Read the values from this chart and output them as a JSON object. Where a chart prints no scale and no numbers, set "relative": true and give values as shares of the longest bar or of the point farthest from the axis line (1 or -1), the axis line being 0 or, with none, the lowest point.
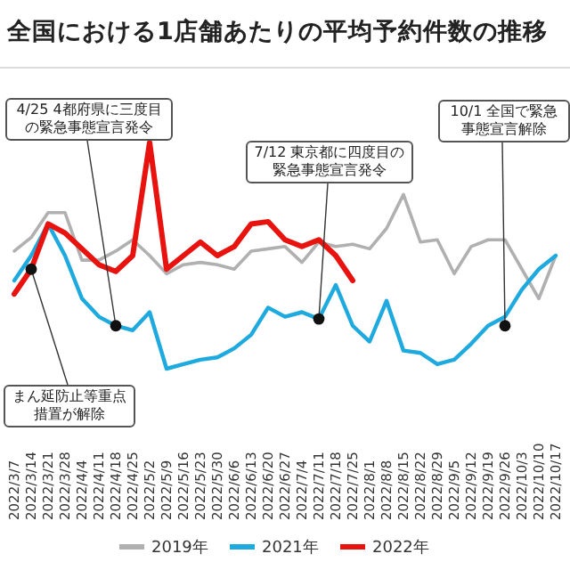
{
  "chart_data": {
    "type": "line",
    "title": "全国における1店舗あたりの平均予約件数の推移",
    "relative": true,
    "legend": "bottom",
    "categories": [
      "2022/3/7",
      "2022/3/14",
      "2022/3/21",
      "2022/3/28",
      "2022/4/4",
      "2022/4/11",
      "2022/4/18",
      "2022/4/25",
      "2022/5/2",
      "2022/5/9",
      "2022/5/16",
      "2022/5/23",
      "2022/5/30",
      "2022/6/6",
      "2022/6/13",
      "2022/6/20",
      "2022/6/27",
      "2022/7/4",
      "2022/7/11",
      "2022/7/18",
      "2022/7/25",
      "2022/8/1",
      "2022/8/8",
      "2022/8/15",
      "2022/8/22",
      "2022/8/29",
      "2022/9/5",
      "2022/9/12",
      "2022/9/19",
      "2022/9/26",
      "2022/10/3",
      "2022/10/10",
      "2022/10/17"
    ],
    "series": [
      {
        "name": "2019年",
        "color": "#b0b0b0",
        "values": [
          0.52,
          0.58,
          0.69,
          0.69,
          0.48,
          0.48,
          0.52,
          0.57,
          0.5,
          0.42,
          0.46,
          0.47,
          0.46,
          0.44,
          0.52,
          0.53,
          0.54,
          0.47,
          0.56,
          0.54,
          0.55,
          0.53,
          0.62,
          0.77,
          0.56,
          0.57,
          0.42,
          0.54,
          0.57,
          0.57,
          0.44,
          0.31,
          0.5
        ]
      },
      {
        "name": "2021年",
        "color": "#1eaadf",
        "values": [
          0.39,
          0.5,
          0.64,
          0.5,
          0.31,
          0.23,
          0.19,
          0.17,
          0.25,
          0,
          0.02,
          0.04,
          0.05,
          0.09,
          0.15,
          0.27,
          0.23,
          0.25,
          0.22,
          0.37,
          0.19,
          0.12,
          0.3,
          0.08,
          0.07,
          0.02,
          0.04,
          0.11,
          0.19,
          0.23,
          0.35,
          0.44,
          0.5
        ]
      },
      {
        "name": "2022年",
        "color": "#e8130f",
        "values": [
          0.33,
          0.44,
          0.64,
          0.6,
          0.53,
          0.46,
          0.43,
          0.5,
          1.0,
          0.44,
          0.5,
          0.56,
          0.5,
          0.54,
          0.64,
          0.65,
          0.57,
          0.54,
          0.57,
          0.5,
          0.39,
          null,
          null,
          null,
          null,
          null,
          null,
          null,
          null,
          null,
          null,
          null,
          null
        ]
      }
    ],
    "annotations": [
      {
        "text": "4/25 4都府県に三度目の緊急事態宣言発令",
        "x": "2022/4/18",
        "y": 0.19
      },
      {
        "text": "7/12 東京都に四度目の緊急事態宣言発令",
        "x": "2022/7/11",
        "y": 0.22
      },
      {
        "text": "10/1 全国で緊急事態宣言解除",
        "x": "2022/9/26",
        "y": 0.19
      },
      {
        "text": "まん延防止等重点措置が解除",
        "x": "2022/3/14",
        "y": 0.44
      }
    ]
  }
}
